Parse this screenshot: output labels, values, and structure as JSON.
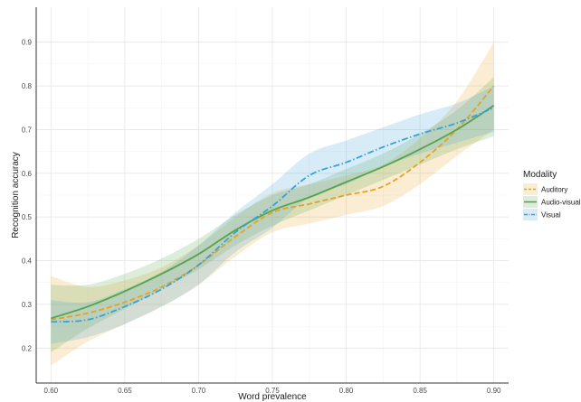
{
  "chart_data": {
    "type": "line",
    "title": "",
    "xlabel": "Word prevalence",
    "ylabel": "Recognition accuracy",
    "xlim": [
      0.59,
      0.91
    ],
    "ylim": [
      0.12,
      0.98
    ],
    "x_ticks": [
      "0.60",
      "0.65",
      "0.70",
      "0.75",
      "0.80",
      "0.85",
      "0.90"
    ],
    "y_ticks": [
      "0.2",
      "0.3",
      "0.4",
      "0.5",
      "0.6",
      "0.7",
      "0.8",
      "0.9"
    ],
    "grid": true,
    "legend": {
      "title": "Modality",
      "placement": "right"
    },
    "series": [
      {
        "name": "Auditory",
        "color": "#e6a321",
        "dash": "dashed",
        "x": [
          0.6,
          0.625,
          0.65,
          0.675,
          0.7,
          0.725,
          0.75,
          0.775,
          0.8,
          0.825,
          0.85,
          0.875,
          0.9
        ],
        "y": [
          0.265,
          0.28,
          0.305,
          0.34,
          0.39,
          0.455,
          0.51,
          0.53,
          0.55,
          0.57,
          0.625,
          0.7,
          0.8
        ],
        "lower": [
          0.16,
          0.215,
          0.255,
          0.295,
          0.345,
          0.41,
          0.465,
          0.485,
          0.505,
          0.525,
          0.575,
          0.64,
          0.7
        ],
        "upper": [
          0.365,
          0.34,
          0.355,
          0.385,
          0.435,
          0.5,
          0.555,
          0.575,
          0.595,
          0.62,
          0.68,
          0.765,
          0.9
        ]
      },
      {
        "name": "Audio-visual",
        "color": "#56a34a",
        "dash": "solid",
        "x": [
          0.6,
          0.625,
          0.65,
          0.675,
          0.7,
          0.725,
          0.75,
          0.775,
          0.8,
          0.825,
          0.85,
          0.875,
          0.9
        ],
        "y": [
          0.268,
          0.295,
          0.33,
          0.37,
          0.415,
          0.47,
          0.515,
          0.545,
          0.58,
          0.615,
          0.655,
          0.7,
          0.755
        ],
        "lower": [
          0.19,
          0.245,
          0.29,
          0.335,
          0.38,
          0.435,
          0.48,
          0.515,
          0.55,
          0.585,
          0.62,
          0.655,
          0.685
        ],
        "upper": [
          0.345,
          0.345,
          0.37,
          0.405,
          0.45,
          0.505,
          0.55,
          0.575,
          0.61,
          0.645,
          0.69,
          0.745,
          0.82
        ]
      },
      {
        "name": "Visual",
        "color": "#3aa0d8",
        "dash": "dotdash",
        "x": [
          0.6,
          0.625,
          0.65,
          0.675,
          0.7,
          0.725,
          0.75,
          0.775,
          0.8,
          0.825,
          0.85,
          0.875,
          0.9
        ],
        "y": [
          0.26,
          0.265,
          0.295,
          0.335,
          0.39,
          0.465,
          0.525,
          0.595,
          0.625,
          0.66,
          0.69,
          0.715,
          0.75
        ],
        "lower": [
          0.21,
          0.225,
          0.255,
          0.295,
          0.345,
          0.42,
          0.475,
          0.545,
          0.575,
          0.615,
          0.645,
          0.67,
          0.695
        ],
        "upper": [
          0.31,
          0.305,
          0.335,
          0.375,
          0.435,
          0.51,
          0.575,
          0.645,
          0.675,
          0.705,
          0.735,
          0.76,
          0.8
        ]
      }
    ]
  }
}
